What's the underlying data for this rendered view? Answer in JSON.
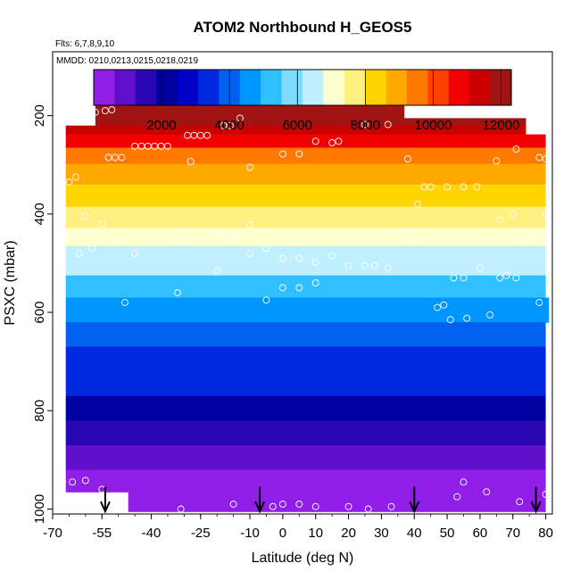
{
  "chart_data": {
    "type": "heatmap",
    "title": "ATOM2 Northbound H_GEOS5",
    "flights_label": "Flts: 6,7,8,9,10",
    "dates_label": "MMDD: 0210,0213,0215,0218,0219",
    "xlabel": "Latitude (deg N)",
    "ylabel": "PSXC (mbar)",
    "xlim": [
      -70,
      82
    ],
    "ylim": [
      1010,
      70
    ],
    "x_ticks": [
      -70,
      -55,
      -40,
      -25,
      -10,
      0,
      10,
      20,
      30,
      40,
      50,
      60,
      70,
      80
    ],
    "x_tick_labels": [
      "-70",
      "-55",
      "-40",
      "-25",
      "-10",
      "0",
      "10",
      "20",
      "30",
      "40",
      "50",
      "60",
      "70",
      "80"
    ],
    "y_ticks": [
      200,
      400,
      600,
      800,
      1000
    ],
    "y_tick_labels": [
      "200",
      "400",
      "600",
      "800",
      "1000"
    ],
    "colorbar": {
      "range": [
        0,
        12300
      ],
      "ticks": [
        2000,
        4000,
        6000,
        8000,
        10000,
        12000
      ],
      "tick_labels": [
        "2000",
        "4000",
        "6000",
        "8000",
        "10000",
        "12000"
      ],
      "colors": [
        "#8f1fe6",
        "#6010c8",
        "#2a06b0",
        "#00009e",
        "#0000c8",
        "#0028e0",
        "#0060f0",
        "#0096ff",
        "#30c0ff",
        "#80dcff",
        "#c0f0ff",
        "#ffffd0",
        "#fff080",
        "#ffd400",
        "#ffa800",
        "#ff7800",
        "#ff4000",
        "#f00000",
        "#c80000",
        "#a01414"
      ]
    },
    "bands": [
      {
        "p_top": 170,
        "p_bottom": 205,
        "lat_min": -57,
        "lat_max": 37,
        "value": 12100
      },
      {
        "p_top": 205,
        "p_bottom": 220,
        "lat_min": -57,
        "lat_max": 74,
        "value": 11700
      },
      {
        "p_top": 220,
        "p_bottom": 238,
        "lat_min": -66,
        "lat_max": 74,
        "value": 11200
      },
      {
        "p_top": 238,
        "p_bottom": 265,
        "lat_min": -66,
        "lat_max": 80,
        "value": 10700
      },
      {
        "p_top": 265,
        "p_bottom": 298,
        "lat_min": -66,
        "lat_max": 80,
        "value": 9700
      },
      {
        "p_top": 298,
        "p_bottom": 340,
        "lat_min": -66,
        "lat_max": 80,
        "value": 8900
      },
      {
        "p_top": 340,
        "p_bottom": 385,
        "lat_min": -66,
        "lat_max": 80,
        "value": 8200
      },
      {
        "p_top": 385,
        "p_bottom": 428,
        "lat_min": -66,
        "lat_max": 80,
        "value": 7500
      },
      {
        "p_top": 428,
        "p_bottom": 465,
        "lat_min": -66,
        "lat_max": 80,
        "value": 6900
      },
      {
        "p_top": 465,
        "p_bottom": 525,
        "lat_min": -66,
        "lat_max": 80,
        "value": 6300
      },
      {
        "p_top": 525,
        "p_bottom": 570,
        "lat_min": -66,
        "lat_max": 80,
        "value": 5300
      },
      {
        "p_top": 570,
        "p_bottom": 620,
        "lat_min": -66,
        "lat_max": 81,
        "value": 4600
      },
      {
        "p_top": 620,
        "p_bottom": 670,
        "lat_min": -66,
        "lat_max": 80,
        "value": 4100
      },
      {
        "p_top": 670,
        "p_bottom": 720,
        "lat_min": -66,
        "lat_max": 80,
        "value": 3600
      },
      {
        "p_top": 720,
        "p_bottom": 770,
        "lat_min": -66,
        "lat_max": 80,
        "value": 3100
      },
      {
        "p_top": 770,
        "p_bottom": 820,
        "lat_min": -66,
        "lat_max": 80,
        "value": 2300
      },
      {
        "p_top": 820,
        "p_bottom": 870,
        "lat_min": -66,
        "lat_max": 80,
        "value": 1600
      },
      {
        "p_top": 870,
        "p_bottom": 920,
        "lat_min": -66,
        "lat_max": 80,
        "value": 900
      },
      {
        "p_top": 920,
        "p_bottom": 965,
        "lat_min": -66,
        "lat_max": 80,
        "value": 500
      },
      {
        "p_top": 965,
        "p_bottom": 1005,
        "lat_min": -47,
        "lat_max": 80,
        "value": 200
      }
    ],
    "observation_points": [
      [
        -59,
        200
      ],
      [
        -57,
        193
      ],
      [
        -54,
        190
      ],
      [
        -52,
        188
      ],
      [
        -67,
        210
      ],
      [
        -53,
        285
      ],
      [
        -51,
        285
      ],
      [
        -49,
        285
      ],
      [
        -45,
        262
      ],
      [
        -43,
        262
      ],
      [
        -41,
        262
      ],
      [
        -39,
        262
      ],
      [
        -37,
        262
      ],
      [
        -35,
        262
      ],
      [
        -29,
        240
      ],
      [
        -27,
        240
      ],
      [
        -25,
        240
      ],
      [
        -23,
        240
      ],
      [
        -18,
        220
      ],
      [
        -16,
        220
      ],
      [
        -13,
        205
      ],
      [
        -28,
        293
      ],
      [
        -10,
        305
      ],
      [
        0,
        278
      ],
      [
        5,
        278
      ],
      [
        10,
        252
      ],
      [
        15,
        255
      ],
      [
        17,
        252
      ],
      [
        25,
        218
      ],
      [
        32,
        218
      ],
      [
        38,
        288
      ],
      [
        41,
        380
      ],
      [
        43,
        345
      ],
      [
        45,
        345
      ],
      [
        50,
        345
      ],
      [
        55,
        345
      ],
      [
        59,
        345
      ],
      [
        65,
        292
      ],
      [
        71,
        268
      ],
      [
        78,
        285
      ],
      [
        80,
        288
      ],
      [
        -65,
        335
      ],
      [
        -63,
        325
      ],
      [
        -60,
        405
      ],
      [
        -55,
        420
      ],
      [
        -60,
        440
      ],
      [
        -66,
        445
      ],
      [
        -67,
        520
      ],
      [
        -58,
        470
      ],
      [
        -62,
        480
      ],
      [
        -50,
        455
      ],
      [
        -45,
        480
      ],
      [
        -30,
        455
      ],
      [
        -20,
        440
      ],
      [
        -15,
        445
      ],
      [
        -10,
        422
      ],
      [
        -5,
        470
      ],
      [
        0,
        490
      ],
      [
        5,
        490
      ],
      [
        10,
        498
      ],
      [
        15,
        485
      ],
      [
        20,
        505
      ],
      [
        25,
        505
      ],
      [
        28,
        505
      ],
      [
        32,
        510
      ],
      [
        36,
        440
      ],
      [
        40,
        455
      ],
      [
        52,
        530
      ],
      [
        55,
        530
      ],
      [
        60,
        510
      ],
      [
        66,
        412
      ],
      [
        70,
        400
      ],
      [
        72,
        452
      ],
      [
        75,
        445
      ],
      [
        80,
        400
      ],
      [
        -48,
        580
      ],
      [
        -32,
        560
      ],
      [
        -20,
        515
      ],
      [
        -10,
        480
      ],
      [
        -5,
        575
      ],
      [
        0,
        550
      ],
      [
        5,
        550
      ],
      [
        10,
        540
      ],
      [
        47,
        590
      ],
      [
        49,
        585
      ],
      [
        51,
        615
      ],
      [
        56,
        612
      ],
      [
        63,
        605
      ],
      [
        66,
        530
      ],
      [
        68,
        525
      ],
      [
        71,
        530
      ],
      [
        78,
        580
      ],
      [
        -67,
        945
      ],
      [
        -64,
        945
      ],
      [
        -60,
        942
      ],
      [
        -55,
        960
      ],
      [
        -50,
        1000
      ],
      [
        -31,
        1000
      ],
      [
        -15,
        990
      ],
      [
        -3,
        995
      ],
      [
        0,
        990
      ],
      [
        5,
        990
      ],
      [
        10,
        995
      ],
      [
        20,
        995
      ],
      [
        26,
        1000
      ],
      [
        33,
        995
      ],
      [
        53,
        975
      ],
      [
        55,
        945
      ],
      [
        62,
        965
      ],
      [
        72,
        985
      ],
      [
        80,
        970
      ]
    ],
    "flight_markers": [
      -54,
      -7,
      40,
      77
    ]
  }
}
